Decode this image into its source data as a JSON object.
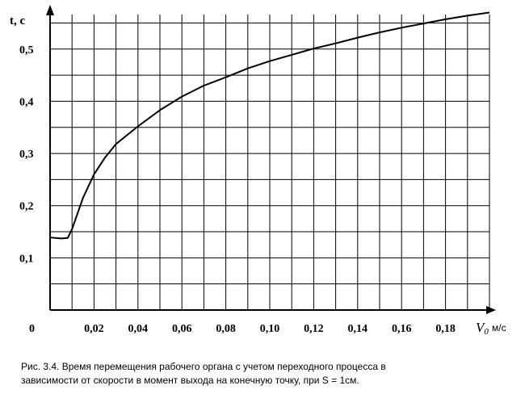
{
  "chart_data": {
    "type": "line",
    "ylabel": "t, с",
    "xlabel_symbol": "V",
    "xlabel_subscript": "0",
    "xlabel_unit": "м/с",
    "origin_label": "0",
    "xlim": [
      0,
      0.2
    ],
    "ylim": [
      0,
      0.56
    ],
    "x_ticks": [
      {
        "value": 0.02,
        "label": "0,02"
      },
      {
        "value": 0.04,
        "label": "0,04"
      },
      {
        "value": 0.06,
        "label": "0,06"
      },
      {
        "value": 0.08,
        "label": "0,08"
      },
      {
        "value": 0.1,
        "label": "0,10"
      },
      {
        "value": 0.12,
        "label": "0,12"
      },
      {
        "value": 0.14,
        "label": "0,14"
      },
      {
        "value": 0.16,
        "label": "0,16"
      },
      {
        "value": 0.18,
        "label": "0,18"
      }
    ],
    "y_ticks": [
      {
        "value": 0.1,
        "label": "0,1"
      },
      {
        "value": 0.2,
        "label": "0,2"
      },
      {
        "value": 0.3,
        "label": "0,3"
      },
      {
        "value": 0.4,
        "label": "0,4"
      },
      {
        "value": 0.5,
        "label": "0,5"
      }
    ],
    "grid": true,
    "grid_x_step": 0.01,
    "grid_y_step": 0.05,
    "series": [
      {
        "x": [
          0,
          0.005,
          0.008,
          0.01,
          0.015,
          0.02,
          0.025,
          0.03,
          0.04,
          0.05,
          0.06,
          0.07,
          0.08,
          0.09,
          0.1,
          0.11,
          0.12,
          0.13,
          0.14,
          0.15,
          0.16,
          0.17,
          0.18,
          0.19,
          0.2
        ],
        "y": [
          0.139,
          0.137,
          0.138,
          0.155,
          0.215,
          0.26,
          0.292,
          0.318,
          0.352,
          0.383,
          0.409,
          0.43,
          0.446,
          0.463,
          0.477,
          0.489,
          0.501,
          0.511,
          0.522,
          0.532,
          0.541,
          0.549,
          0.557,
          0.564,
          0.57
        ]
      }
    ]
  },
  "caption": {
    "line1": "Рис. 3.4. Время перемещения рабочего органа с учетом переходного процесса в",
    "line2": "зависимости от скорости в момент выхода на конечную точку, при S = 1см."
  }
}
